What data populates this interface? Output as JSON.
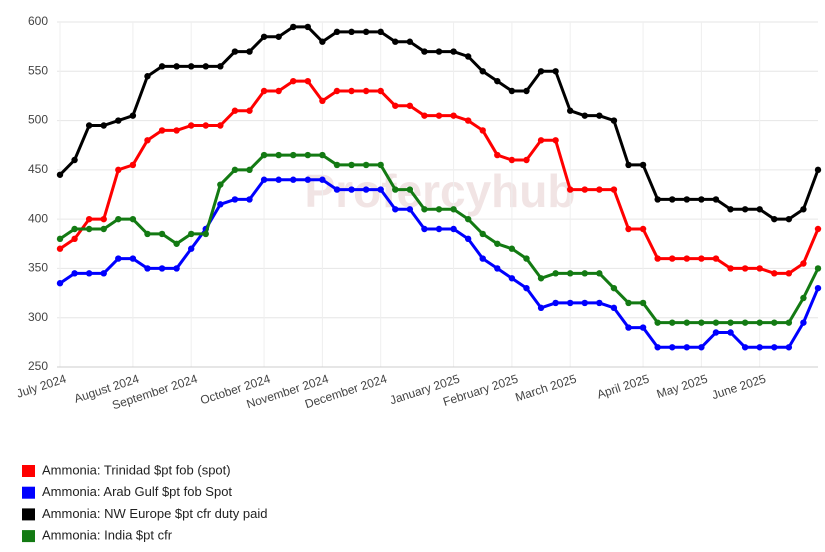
{
  "chart_data": {
    "type": "line",
    "watermark": "Profercyhub",
    "categories": [
      "July 2024",
      null,
      null,
      null,
      null,
      "August 2024",
      null,
      null,
      null,
      "September 2024",
      null,
      null,
      null,
      null,
      "October 2024",
      null,
      null,
      null,
      "November 2024",
      null,
      null,
      null,
      "December 2024",
      null,
      null,
      null,
      null,
      "January 2025",
      null,
      null,
      null,
      "February 2025",
      null,
      null,
      null,
      "March 2025",
      null,
      null,
      null,
      null,
      "April 2025",
      null,
      null,
      null,
      "May 2025",
      null,
      null,
      null,
      "June 2025",
      null,
      null,
      null,
      null
    ],
    "series": [
      {
        "name": "Ammonia: Trinidad $pt fob (spot)",
        "color": "#ff0000",
        "values": [
          370,
          380,
          400,
          400,
          450,
          455,
          480,
          490,
          490,
          495,
          495,
          495,
          510,
          510,
          530,
          530,
          540,
          540,
          520,
          530,
          530,
          530,
          530,
          515,
          515,
          505,
          505,
          505,
          500,
          490,
          465,
          460,
          460,
          480,
          480,
          430,
          430,
          430,
          430,
          390,
          390,
          360,
          360,
          360,
          360,
          360,
          350,
          350,
          350,
          345,
          345,
          355,
          390
        ]
      },
      {
        "name": "Ammonia: Arab Gulf $pt fob Spot",
        "color": "#0000ff",
        "values": [
          335,
          345,
          345,
          345,
          360,
          360,
          350,
          350,
          350,
          370,
          390,
          415,
          420,
          420,
          440,
          440,
          440,
          440,
          440,
          430,
          430,
          430,
          430,
          410,
          410,
          390,
          390,
          390,
          380,
          360,
          350,
          340,
          330,
          310,
          315,
          315,
          315,
          315,
          310,
          290,
          290,
          270,
          270,
          270,
          270,
          285,
          285,
          270,
          270,
          270,
          270,
          295,
          330
        ]
      },
      {
        "name": "Ammonia: NW Europe $pt cfr duty paid",
        "color": "#000000",
        "values": [
          445,
          460,
          495,
          495,
          500,
          505,
          545,
          555,
          555,
          555,
          555,
          555,
          570,
          570,
          585,
          585,
          595,
          595,
          580,
          590,
          590,
          590,
          590,
          580,
          580,
          570,
          570,
          570,
          565,
          550,
          540,
          530,
          530,
          550,
          550,
          510,
          505,
          505,
          500,
          455,
          455,
          420,
          420,
          420,
          420,
          420,
          410,
          410,
          410,
          400,
          400,
          410,
          450
        ]
      },
      {
        "name": "Ammonia: India $pt cfr",
        "color": "#137a13",
        "values": [
          380,
          390,
          390,
          390,
          400,
          400,
          385,
          385,
          375,
          385,
          385,
          435,
          450,
          450,
          465,
          465,
          465,
          465,
          465,
          455,
          455,
          455,
          455,
          430,
          430,
          410,
          410,
          410,
          400,
          385,
          375,
          370,
          360,
          340,
          345,
          345,
          345,
          345,
          330,
          315,
          315,
          295,
          295,
          295,
          295,
          295,
          295,
          295,
          295,
          295,
          295,
          320,
          350
        ]
      }
    ],
    "ylim": [
      250,
      600
    ],
    "yticks": [
      250,
      300,
      350,
      400,
      450,
      500,
      550,
      600
    ],
    "grid": true
  }
}
